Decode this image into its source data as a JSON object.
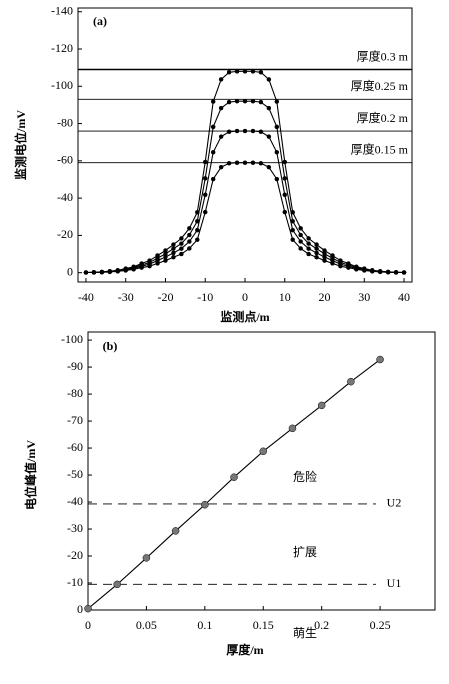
{
  "chart_data": [
    {
      "type": "line",
      "title": "(a)",
      "xlabel": "监测点/m",
      "ylabel": "监测电位/mV",
      "color": "#000000",
      "x": [
        -40,
        -38,
        -36,
        -34,
        -32,
        -30,
        -28,
        -26,
        -24,
        -22,
        -20,
        -18,
        -16,
        -14,
        -12,
        -10,
        -8,
        -6,
        -4,
        -2,
        0,
        2,
        4,
        6,
        8,
        10,
        12,
        14,
        16,
        18,
        20,
        22,
        24,
        26,
        28,
        30,
        32,
        34,
        36,
        38,
        40
      ],
      "series": [
        {
          "color": "#000000",
          "values": [
            -0.1,
            -0.2,
            -0.4,
            -0.8,
            -1.3,
            -2.2,
            -3.2,
            -4.9,
            -6.5,
            -9.2,
            -11.9,
            -15.1,
            -18.4,
            -23.8,
            -32.4,
            -59.4,
            -91.8,
            -103.7,
            -107.5,
            -108,
            -108,
            -108,
            -107.5,
            -103.7,
            -91.8,
            -59.4,
            -32.4,
            -23.8,
            -18.4,
            -15.1,
            -11.9,
            -9.2,
            -6.5,
            -4.9,
            -3.2,
            -2.2,
            -1.3,
            -0.8,
            -0.4,
            -0.2,
            -0.1
          ]
        },
        {
          "color": "#000000",
          "values": [
            -0.1,
            -0.2,
            -0.4,
            -0.6,
            -1.1,
            -1.8,
            -2.8,
            -4.1,
            -5.5,
            -7.8,
            -10.1,
            -12.9,
            -15.6,
            -20.2,
            -27.6,
            -50.6,
            -78.2,
            -88.3,
            -91.5,
            -92,
            -92,
            -92,
            -91.5,
            -88.3,
            -78.2,
            -50.6,
            -27.6,
            -20.2,
            -15.6,
            -12.9,
            -10.1,
            -7.8,
            -5.5,
            -4.1,
            -2.8,
            -1.8,
            -1.1,
            -0.6,
            -0.4,
            -0.2,
            -0.1
          ]
        },
        {
          "color": "#000000",
          "values": [
            -0.1,
            -0.2,
            -0.3,
            -0.5,
            -0.9,
            -1.5,
            -2.3,
            -3.4,
            -4.6,
            -6.5,
            -8.4,
            -10.6,
            -12.9,
            -16.7,
            -22.8,
            -41.8,
            -64.6,
            -73,
            -75.6,
            -76,
            -76,
            -76,
            -75.6,
            -73,
            -64.6,
            -41.8,
            -22.8,
            -16.7,
            -12.9,
            -10.6,
            -8.4,
            -6.5,
            -4.6,
            -3.4,
            -2.3,
            -1.5,
            -0.9,
            -0.5,
            -0.3,
            -0.2,
            -0.1
          ]
        },
        {
          "color": "#000000",
          "values": [
            -0.1,
            -0.1,
            -0.2,
            -0.4,
            -0.7,
            -1.2,
            -1.8,
            -2.7,
            -3.5,
            -5,
            -6.5,
            -8.3,
            -10,
            -13,
            -17.7,
            -32.5,
            -50.2,
            -56.6,
            -58.7,
            -59,
            -59,
            -59,
            -58.7,
            -56.6,
            -50.2,
            -32.5,
            -17.7,
            -13,
            -10,
            -8.3,
            -6.5,
            -5,
            -3.5,
            -2.7,
            -1.8,
            -1.2,
            -0.7,
            -0.4,
            -0.2,
            -0.1,
            -0.1
          ]
        }
      ],
      "hlines": [
        {
          "value": -109,
          "label": "厚度0.3 m"
        },
        {
          "value": -93,
          "label": "厚度0.25 m"
        },
        {
          "value": -76,
          "label": "厚度0.2 m"
        },
        {
          "value": -59,
          "label": "厚度0.15 m"
        }
      ],
      "xlim": [
        -42,
        42
      ],
      "xticks": [
        -40,
        -30,
        -20,
        -10,
        0,
        10,
        20,
        30,
        40
      ],
      "ylim": [
        5,
        -142
      ],
      "yticks": [
        0,
        -20,
        -40,
        -60,
        -80,
        -100,
        -120,
        -140
      ]
    },
    {
      "type": "line",
      "title": "(b)",
      "xlabel": "厚度/m",
      "ylabel": "电位峰值/mV",
      "color": "#000000",
      "x": [
        0,
        0.025,
        0.05,
        0.075,
        0.1,
        0.125,
        0.15,
        0.175,
        0.2,
        0.225,
        0.25
      ],
      "series": [
        {
          "color": "#000000",
          "marker_color": "#777777",
          "values": [
            -0.5,
            -9.5,
            -19.3,
            -29.3,
            -39,
            -49.2,
            -58.8,
            -67.3,
            -75.8,
            -84.6,
            -92.8
          ]
        }
      ],
      "hlines": [
        {
          "value": -39.3,
          "label": "U2"
        },
        {
          "value": -9.5,
          "label": "U1"
        }
      ],
      "annotations": [
        "危险",
        "扩展",
        "萌生"
      ],
      "xlim": [
        0,
        0.297
      ],
      "xticks": [
        0,
        0.05,
        0.1,
        0.15,
        0.2,
        0.25
      ],
      "ylim": [
        0,
        -103
      ],
      "yticks": [
        0,
        -10,
        -20,
        -30,
        -40,
        -50,
        -60,
        -70,
        -80,
        -90,
        -100
      ]
    }
  ]
}
